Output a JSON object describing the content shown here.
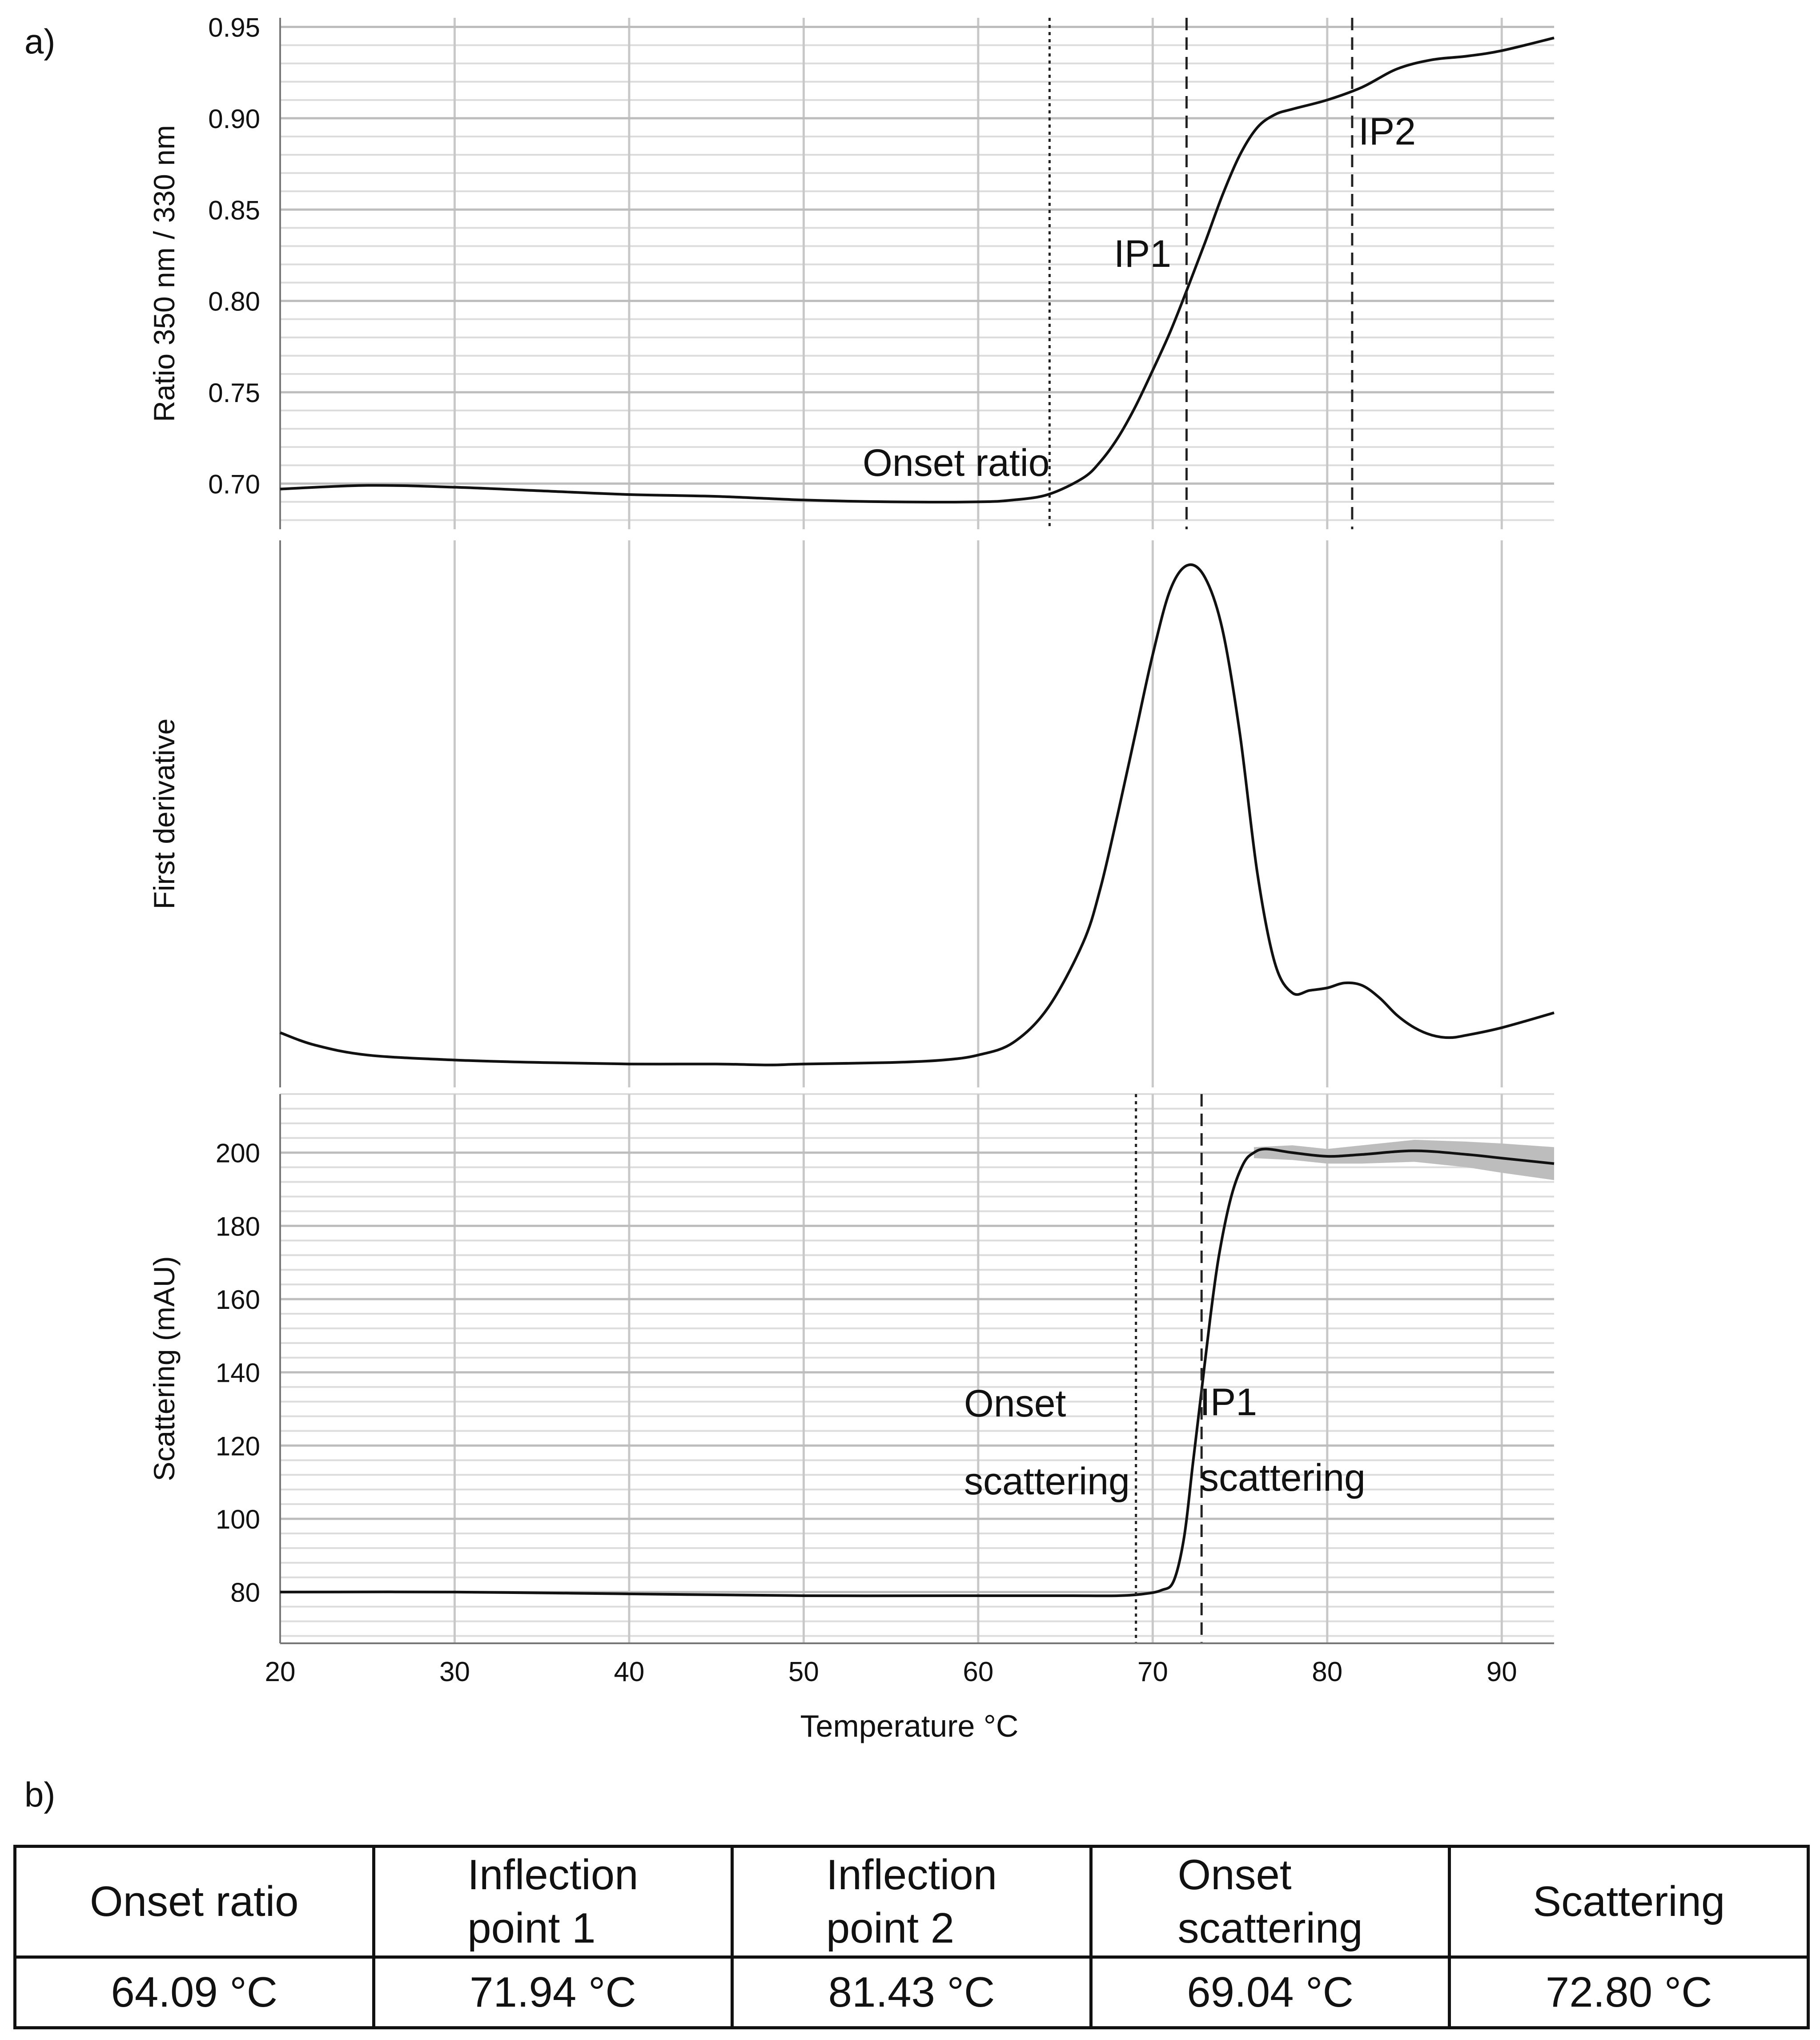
{
  "panel_a_label": "a)",
  "panel_b_label": "b)",
  "chart_data": [
    {
      "type": "line",
      "name": "ratio",
      "ylabel": "Ratio 350 nm / 330 nm",
      "xlim": [
        20,
        93
      ],
      "ylim": [
        0.675,
        0.955
      ],
      "yticks": [
        0.7,
        0.75,
        0.8,
        0.85,
        0.9,
        0.95
      ],
      "ytick_labels": [
        "0.70",
        "0.75",
        "0.80",
        "0.85",
        "0.90",
        "0.95"
      ],
      "x": [
        20,
        25,
        30,
        35,
        40,
        45,
        50,
        55,
        60,
        62,
        64,
        66,
        67,
        68,
        69,
        70,
        71,
        72,
        73,
        74,
        75,
        76,
        77,
        78,
        80,
        82,
        84,
        86,
        88,
        90,
        93
      ],
      "y": [
        0.697,
        0.699,
        0.698,
        0.696,
        0.694,
        0.693,
        0.691,
        0.69,
        0.69,
        0.691,
        0.694,
        0.703,
        0.712,
        0.725,
        0.742,
        0.762,
        0.783,
        0.807,
        0.832,
        0.858,
        0.88,
        0.895,
        0.902,
        0.905,
        0.91,
        0.917,
        0.927,
        0.932,
        0.934,
        0.937,
        0.944
      ],
      "vlines": [
        {
          "x": 64.09,
          "style": "dotted",
          "label": "Onset ratio"
        },
        {
          "x": 71.94,
          "style": "dashed",
          "label": "IP1"
        },
        {
          "x": 81.43,
          "style": "dashed",
          "label": "IP2"
        }
      ]
    },
    {
      "type": "line",
      "name": "derivative",
      "ylabel": "First derivative",
      "xlim": [
        20,
        93
      ],
      "ylim": [
        -0.05,
        1.05
      ],
      "x": [
        20,
        22,
        25,
        30,
        35,
        40,
        45,
        48,
        50,
        55,
        58,
        60,
        62,
        64,
        66,
        67,
        68,
        69,
        70,
        71,
        72,
        73,
        74,
        75,
        76,
        77,
        78,
        79,
        80,
        81,
        82,
        83,
        84,
        85,
        86,
        87,
        88,
        90,
        93
      ],
      "y": [
        0.06,
        0.035,
        0.015,
        0.005,
        0.0,
        -0.003,
        -0.003,
        -0.005,
        -0.003,
        0.0,
        0.005,
        0.015,
        0.04,
        0.11,
        0.24,
        0.35,
        0.5,
        0.66,
        0.82,
        0.95,
        1.0,
        0.975,
        0.87,
        0.66,
        0.38,
        0.2,
        0.14,
        0.145,
        0.15,
        0.16,
        0.155,
        0.13,
        0.095,
        0.07,
        0.055,
        0.05,
        0.055,
        0.07,
        0.1
      ],
      "vlines": []
    },
    {
      "type": "line",
      "name": "scattering",
      "ylabel": "Scattering (mAU)",
      "xlabel": "Temperature °C",
      "xlim": [
        20,
        93
      ],
      "ylim": [
        66,
        216
      ],
      "yticks": [
        80,
        100,
        120,
        140,
        160,
        180,
        200
      ],
      "ytick_labels": [
        "80",
        "100",
        "120",
        "140",
        "160",
        "180",
        "200"
      ],
      "xticks": [
        20,
        30,
        40,
        50,
        60,
        70,
        80,
        90
      ],
      "xtick_labels": [
        "20",
        "30",
        "40",
        "50",
        "60",
        "70",
        "80",
        "90"
      ],
      "x": [
        20,
        30,
        40,
        50,
        60,
        65,
        68,
        69.5,
        70.5,
        71.2,
        71.8,
        72.3,
        72.8,
        73.3,
        73.8,
        74.5,
        75.2,
        75.8,
        76.5,
        78,
        80,
        82,
        85,
        88,
        90,
        93
      ],
      "y": [
        80,
        80,
        79.5,
        79,
        79,
        79,
        79,
        79.5,
        80.5,
        83,
        95,
        115,
        135,
        155,
        172,
        188,
        197,
        200,
        201,
        200,
        199,
        199.5,
        200.5,
        199.5,
        198.5,
        197
      ],
      "band_x": [
        75.8,
        78,
        80,
        82,
        85,
        88,
        90,
        93
      ],
      "band_halfwidth": [
        1.5,
        2.0,
        2.0,
        2.5,
        3.0,
        3.5,
        4.0,
        4.5
      ],
      "vlines": [
        {
          "x": 69.04,
          "style": "dotted",
          "label1": "Onset",
          "label2": "scattering"
        },
        {
          "x": 72.8,
          "style": "dashed",
          "label1": "IP1",
          "label2": "scattering"
        }
      ]
    }
  ],
  "table": {
    "headers": [
      {
        "line1": "Onset ratio",
        "line2": ""
      },
      {
        "line1": "Inflection",
        "line2": "point 1"
      },
      {
        "line1": "Inflection",
        "line2": "point 2"
      },
      {
        "line1": "Onset",
        "line2": "scattering"
      },
      {
        "line1": "Scattering",
        "line2": ""
      }
    ],
    "values": [
      "64.09 °C",
      "71.94 °C",
      "81.43 °C",
      "69.04 °C",
      "72.80 °C"
    ]
  }
}
